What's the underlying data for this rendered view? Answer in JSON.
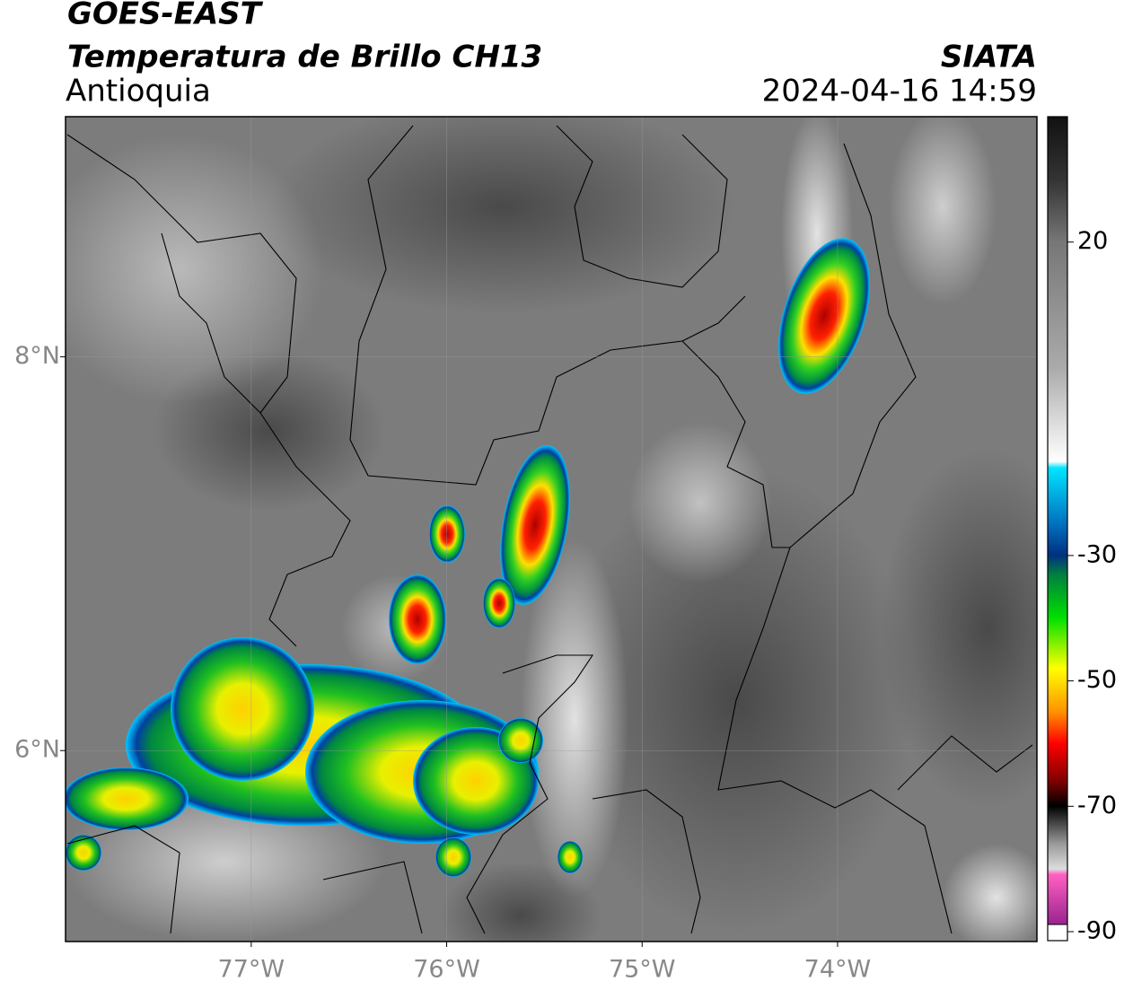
{
  "header": {
    "satellite": "GOES-EAST",
    "product": "Temperatura de Brillo CH13",
    "region": "Antioquia",
    "agency": "SIATA",
    "datetime": "2024-04-16 14:59"
  },
  "map": {
    "xlim": [
      -77.95,
      -72.98
    ],
    "ylim": [
      5.03,
      9.22
    ],
    "xticks": [
      {
        "value": -77,
        "label": "77°W"
      },
      {
        "value": -76,
        "label": "76°W"
      },
      {
        "value": -75,
        "label": "75°W"
      },
      {
        "value": -74,
        "label": "74°W"
      }
    ],
    "yticks": [
      {
        "value": 6,
        "label": "6°N"
      },
      {
        "value": 8,
        "label": "8°N"
      }
    ],
    "grid": true
  },
  "colorbar": {
    "lim": [
      -90,
      40
    ],
    "ticks": [
      20,
      -30,
      -50,
      -70,
      -90
    ]
  }
}
